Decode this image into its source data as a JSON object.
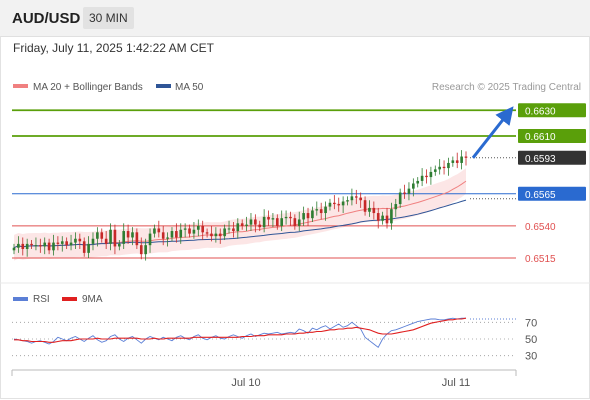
{
  "header": {
    "pair": "AUD/USD",
    "timeframe": "30 MIN"
  },
  "timestamp": "Friday, July 11, 2025 1:42:22 AM CET",
  "source": "Research © 2025 Trading Central",
  "legend": [
    {
      "label": "MA 20 + Bollinger Bands",
      "color": "#f08080"
    },
    {
      "label": "MA 50",
      "color": "#2f5597"
    }
  ],
  "rsi_legend": [
    {
      "label": "RSI",
      "color": "#5b7fd6"
    },
    {
      "label": "9MA",
      "color": "#e02020"
    }
  ],
  "colors": {
    "up": "#2e7d32",
    "down": "#c62828",
    "target": "#5a9f0a",
    "pivot": "#2a6ad0",
    "support": "#e05050",
    "last": "#333333"
  },
  "chart_data": [
    {
      "type": "candlestick",
      "x_ticks": [
        "Jul 10",
        "Jul 11"
      ],
      "ylim": [
        0.6501,
        0.6638
      ],
      "levels": [
        {
          "label": "0.6630",
          "value": 0.663,
          "kind": "target"
        },
        {
          "label": "0.6610",
          "value": 0.661,
          "kind": "target"
        },
        {
          "label": "0.6593",
          "value": 0.6593,
          "kind": "last"
        },
        {
          "label": "0.6565",
          "value": 0.6565,
          "kind": "pivot"
        },
        {
          "label": "0.6540",
          "value": 0.654,
          "kind": "support"
        },
        {
          "label": "0.6515",
          "value": 0.6515,
          "kind": "support"
        }
      ],
      "close": [
        0.6523,
        0.6526,
        0.6522,
        0.6526,
        0.6525,
        0.6525,
        0.6524,
        0.6527,
        0.6521,
        0.6527,
        0.6526,
        0.6528,
        0.6525,
        0.6527,
        0.653,
        0.6528,
        0.6519,
        0.6526,
        0.653,
        0.6535,
        0.653,
        0.6526,
        0.6537,
        0.6524,
        0.6526,
        0.6536,
        0.6531,
        0.6535,
        0.6525,
        0.6518,
        0.6525,
        0.6534,
        0.6538,
        0.6535,
        0.653,
        0.6531,
        0.6536,
        0.6531,
        0.6537,
        0.6538,
        0.6534,
        0.6537,
        0.654,
        0.6535,
        0.6534,
        0.6532,
        0.6534,
        0.6532,
        0.6538,
        0.6538,
        0.6536,
        0.6542,
        0.654,
        0.6541,
        0.6545,
        0.6541,
        0.6539,
        0.6547,
        0.6545,
        0.6546,
        0.654,
        0.6546,
        0.6547,
        0.6546,
        0.654,
        0.6545,
        0.655,
        0.6546,
        0.6552,
        0.6553,
        0.655,
        0.6555,
        0.6558,
        0.6557,
        0.6556,
        0.6559,
        0.656,
        0.6563,
        0.6562,
        0.656,
        0.6551,
        0.6554,
        0.655,
        0.6544,
        0.6548,
        0.6542,
        0.6553,
        0.6557,
        0.6566,
        0.6565,
        0.6569,
        0.6573,
        0.6575,
        0.6579,
        0.6578,
        0.6582,
        0.6584,
        0.6586,
        0.6585,
        0.6589,
        0.6591,
        0.6589,
        0.6594,
        0.6593
      ]
    },
    {
      "type": "line",
      "title": "RSI",
      "y_ticks": [
        70,
        50,
        30
      ],
      "series": [
        {
          "name": "RSI",
          "values": [
            50,
            49,
            48,
            47,
            45,
            47,
            48,
            46,
            44,
            47,
            52,
            50,
            48,
            51,
            53,
            50,
            47,
            51,
            54,
            49,
            46,
            48,
            53,
            55,
            50,
            47,
            51,
            53,
            49,
            45,
            50,
            53,
            51,
            49,
            52,
            50,
            48,
            52,
            54,
            51,
            49,
            53,
            55,
            51,
            49,
            52,
            54,
            51,
            50,
            53,
            55,
            53,
            51,
            54,
            56,
            53,
            55,
            57,
            56,
            57,
            58,
            56,
            57,
            58,
            57,
            62,
            60,
            57,
            63,
            61,
            64,
            66,
            62,
            65,
            68,
            64,
            66,
            70,
            66,
            62,
            52,
            48,
            44,
            40,
            50,
            56,
            60,
            61,
            63,
            65,
            67,
            69,
            71,
            72,
            73,
            74,
            74,
            73,
            73,
            74,
            75,
            74,
            75,
            75
          ]
        },
        {
          "name": "9MA",
          "values": [
            49,
            49,
            48,
            48,
            47,
            47,
            47,
            47,
            46,
            46,
            47,
            48,
            48,
            48,
            49,
            50,
            50,
            50,
            50,
            51,
            50,
            50,
            50,
            51,
            51,
            51,
            51,
            51,
            51,
            50,
            50,
            50,
            51,
            50,
            50,
            51,
            51,
            51,
            51,
            51,
            51,
            52,
            52,
            52,
            52,
            52,
            52,
            52,
            52,
            52,
            52,
            52,
            53,
            53,
            53,
            54,
            54,
            54,
            55,
            55,
            55,
            55,
            56,
            56,
            56,
            57,
            57,
            58,
            58,
            59,
            59,
            60,
            61,
            61,
            62,
            62,
            63,
            63,
            64,
            63,
            62,
            61,
            59,
            57,
            56,
            56,
            56,
            57,
            58,
            59,
            60,
            61,
            63,
            65,
            67,
            69,
            70,
            71,
            72,
            73,
            73,
            74,
            74,
            75
          ]
        }
      ]
    }
  ]
}
